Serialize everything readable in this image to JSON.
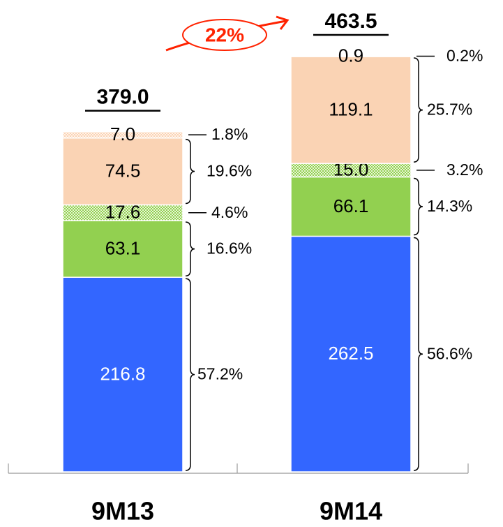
{
  "chart_data": {
    "type": "stacked_bar",
    "categories": [
      "9M13",
      "9M14"
    ],
    "totals": [
      379.0,
      463.5
    ],
    "total_labels": [
      "379.0",
      "463.5"
    ],
    "annotation": "22%",
    "series": [
      {
        "color": "#3366ff",
        "label_color": "#ffffff",
        "hatched": false,
        "values": [
          216.8,
          262.5
        ],
        "value_labels": [
          "216.8",
          "262.5"
        ],
        "percents": [
          57.2,
          56.6
        ],
        "percent_labels": [
          "57.2%",
          "56.6%"
        ]
      },
      {
        "color": "#92d050",
        "label_color": "#000000",
        "hatched": false,
        "values": [
          63.1,
          66.1
        ],
        "value_labels": [
          "63.1",
          "66.1"
        ],
        "percents": [
          16.6,
          14.3
        ],
        "percent_labels": [
          "16.6%",
          "14.3%"
        ]
      },
      {
        "color": "#92d050",
        "label_color": "#000000",
        "hatched": true,
        "values": [
          17.6,
          15.0
        ],
        "value_labels": [
          "17.6",
          "15.0"
        ],
        "percents": [
          4.6,
          3.2
        ],
        "percent_labels": [
          "4.6%",
          "3.2%"
        ]
      },
      {
        "color": "#fad3b4",
        "label_color": "#000000",
        "hatched": false,
        "values": [
          74.5,
          119.1
        ],
        "value_labels": [
          "74.5",
          "119.1"
        ],
        "percents": [
          19.6,
          25.7
        ],
        "percent_labels": [
          "19.6%",
          "25.7%"
        ]
      },
      {
        "color": "#fad3b4",
        "label_color": "#000000",
        "hatched": true,
        "values": [
          7.0,
          0.9
        ],
        "value_labels": [
          "7.0",
          "0.9"
        ],
        "percents": [
          1.8,
          0.2
        ],
        "percent_labels": [
          "1.8%",
          "0.2%"
        ]
      }
    ]
  }
}
